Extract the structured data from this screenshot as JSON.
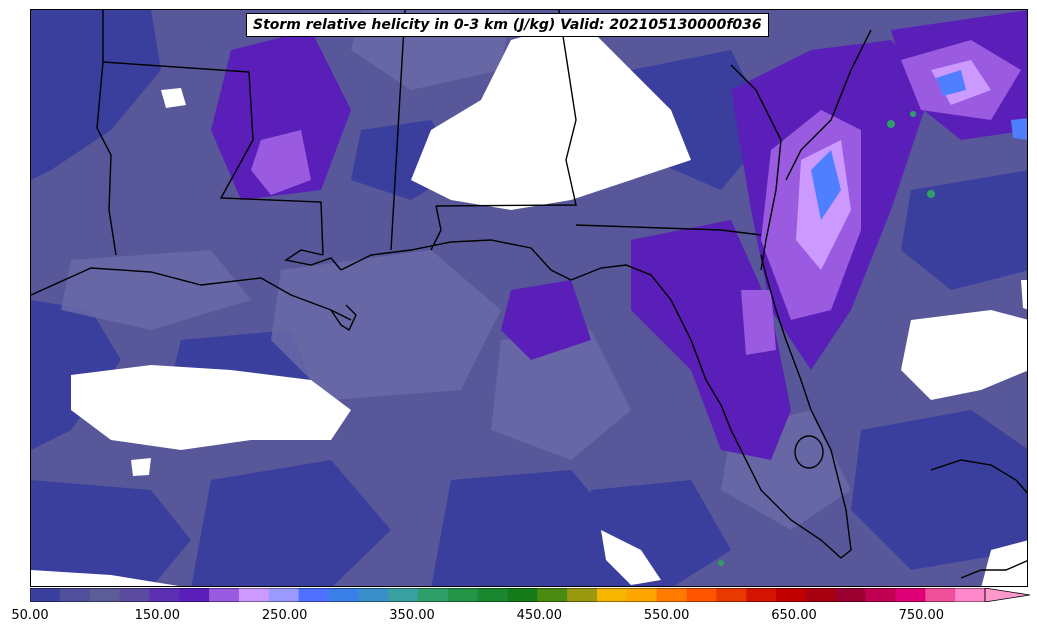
{
  "title": "Storm relative helicity in 0-3 km (J/kg) Valid: 202105130000f036",
  "colorbar": {
    "tick_labels": [
      "50.00",
      "150.00",
      "250.00",
      "350.00",
      "450.00",
      "550.00",
      "650.00",
      "750.00"
    ],
    "tick_values": [
      50,
      150,
      250,
      350,
      450,
      550,
      650,
      750
    ],
    "range": [
      50,
      800
    ],
    "step": 25,
    "extend": "max",
    "extend_color": "#ff99cc",
    "colors": [
      "#3a3f9e",
      "#4f4f9b",
      "#5c5c96",
      "#5a4aa0",
      "#5a2fb0",
      "#5c1fbb",
      "#9a5be0",
      "#cc99ff",
      "#9999ff",
      "#4f6fff",
      "#3a7fe8",
      "#3a8fc8",
      "#3a9fa0",
      "#2f9f6a",
      "#239445",
      "#1a8730",
      "#157a1a",
      "#4a8a10",
      "#9a9a10",
      "#f5b500",
      "#ffa500",
      "#ff7a00",
      "#ff5500",
      "#e83a00",
      "#d41400",
      "#c00000",
      "#a80010",
      "#9a0030",
      "#c00050",
      "#e00075",
      "#f0509a",
      "#ff88cc"
    ]
  },
  "map": {
    "region": "Gulf of Mexico / Southeastern United States",
    "colors": {
      "base": "#57579a",
      "low": "#3a3f9e",
      "mid": "#6a6aa8",
      "violet": "#5a1fb8",
      "lavender": "#9a5be0",
      "light": "#cc99ff",
      "blue": "#4f7fff",
      "green": "#2f9f6a",
      "missing": "#ffffff",
      "border": "#000000"
    }
  }
}
